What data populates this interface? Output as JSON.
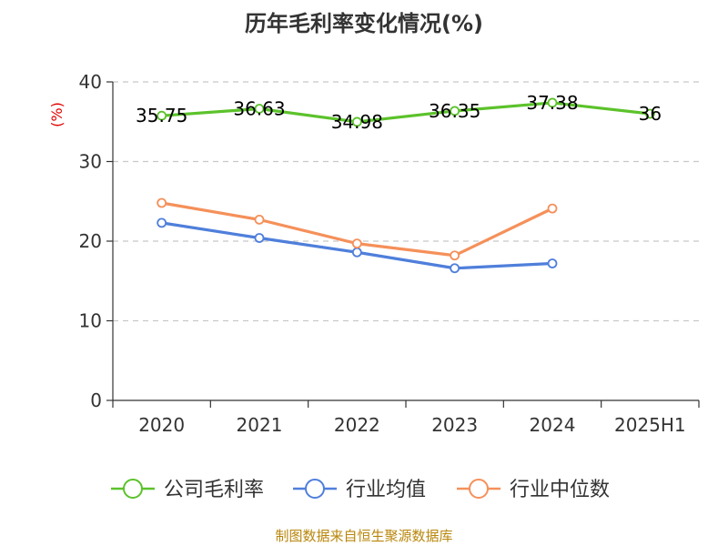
{
  "chart_data": {
    "type": "line",
    "title": "历年毛利率变化情况(%)",
    "ylabel": "(%)",
    "xlabel": "",
    "categories": [
      "2020",
      "2021",
      "2022",
      "2023",
      "2024",
      "2025H1"
    ],
    "ylim": [
      0,
      40
    ],
    "yticks": [
      0,
      10,
      20,
      30,
      40
    ],
    "grid": true,
    "legend_position": "bottom",
    "series": [
      {
        "name": "公司毛利率",
        "color": "#5cc22b",
        "values": [
          35.75,
          36.63,
          34.98,
          36.35,
          37.38,
          36
        ],
        "labels": [
          "35.75",
          "36.63",
          "34.98",
          "36.35",
          "37.38",
          "36"
        ],
        "show_labels": true
      },
      {
        "name": "行业均值",
        "color": "#4f7fdb",
        "values": [
          22.3,
          20.4,
          18.6,
          16.6,
          17.2,
          null
        ],
        "show_labels": false
      },
      {
        "name": "行业中位数",
        "color": "#f5905a",
        "values": [
          24.8,
          22.7,
          19.7,
          18.2,
          24.1,
          null
        ],
        "show_labels": false
      }
    ],
    "source": "制图数据来自恒生聚源数据库"
  }
}
